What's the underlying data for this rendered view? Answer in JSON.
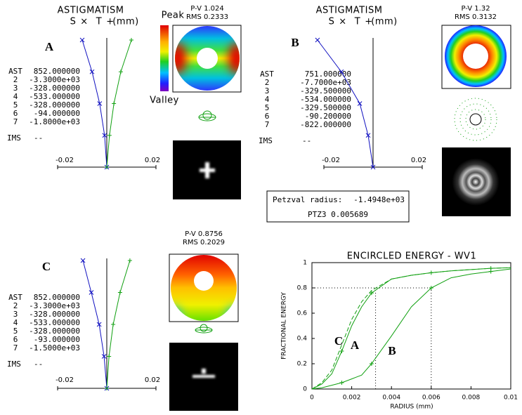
{
  "panels": [
    {
      "label": "A",
      "title": "ASTIGMATISM",
      "units": "(mm)",
      "rows": [
        [
          "AST",
          "852.000000"
        ],
        [
          "2",
          "-3.3000e+03"
        ],
        [
          "3",
          "-328.000000"
        ],
        [
          "4",
          "-533.000000"
        ],
        [
          "5",
          "-328.000000"
        ],
        [
          "6",
          "-94.000000"
        ],
        [
          "7",
          "-1.8000e+03"
        ]
      ],
      "ims": [
        "IMS",
        "--"
      ],
      "wavefront": {
        "pv": "P-V 1.024",
        "rms": "RMS 0.2333",
        "peak": "Peak",
        "valley": "Valley"
      },
      "plot": {
        "xlim": [
          -0.02,
          0.02
        ],
        "xticks": [
          -0.02,
          0.02
        ],
        "field": [
          1,
          0.75,
          0.5,
          0.25,
          0
        ],
        "series": [
          {
            "name": "S",
            "marker": "×",
            "color": "#1010c0",
            "values": [
              -0.01,
              -0.006,
              -0.0029,
              -0.0009,
              0
            ]
          },
          {
            "name": "T",
            "marker": "+",
            "color": "#10a010",
            "values": [
              0.01,
              0.0057,
              0.0029,
              0.0011,
              0
            ]
          }
        ]
      }
    },
    {
      "label": "B",
      "title": "ASTIGMATISM",
      "units": "(mm)",
      "rows": [
        [
          "AST",
          "751.000000"
        ],
        [
          "2",
          "-7.7000e+03"
        ],
        [
          "3",
          "-329.500000"
        ],
        [
          "4",
          "-534.000000"
        ],
        [
          "5",
          "-329.500000"
        ],
        [
          "6",
          "-90.200000"
        ],
        [
          "7",
          "-822.000000"
        ]
      ],
      "ims": [
        "IMS",
        "--"
      ],
      "wavefront": {
        "pv": "P-V 1.32",
        "rms": "RMS 0.3132"
      },
      "plot": {
        "xlim": [
          -0.02,
          0.02
        ],
        "xticks": [
          -0.02,
          0.02
        ],
        "field": [
          1,
          0.75,
          0.5,
          0.25,
          0
        ],
        "series": [
          {
            "name": "S",
            "marker": "×",
            "color": "#1010c0",
            "values": [
              -0.0226,
              -0.0129,
              -0.0054,
              -0.002,
              0
            ]
          },
          {
            "name": "T",
            "marker": "+",
            "color": "#10a010",
            "values": [
              null,
              null,
              null,
              null,
              null
            ]
          }
        ]
      }
    },
    {
      "label": "C",
      "rows": [
        [
          "AST",
          "852.000000"
        ],
        [
          "2",
          "-3.3000e+03"
        ],
        [
          "3",
          "-328.000000"
        ],
        [
          "4",
          "-533.000000"
        ],
        [
          "5",
          "-328.000000"
        ],
        [
          "6",
          "-93.000000"
        ],
        [
          "7",
          "-1.5000e+03"
        ]
      ],
      "ims": [
        "IMS",
        "--"
      ],
      "wavefront": {
        "pv": "P-V 0.8756",
        "rms": "RMS 0.2029"
      },
      "plot": {
        "xlim": [
          -0.02,
          0.02
        ],
        "xticks": [
          -0.02,
          0.02
        ],
        "field": [
          1,
          0.75,
          0.5,
          0.25,
          0
        ],
        "series": [
          {
            "name": "S",
            "marker": "×",
            "color": "#1010c0",
            "values": [
              -0.0097,
              -0.0063,
              -0.0031,
              -0.0011,
              0
            ]
          },
          {
            "name": "T",
            "marker": "+",
            "color": "#10a010",
            "values": [
              0.0094,
              0.0054,
              0.0026,
              0.0009,
              0
            ]
          }
        ]
      }
    }
  ],
  "petzval": {
    "label": "Petzval radius:",
    "value": "-1.4948e+03",
    "ptz3": "PTZ3 0.005689"
  },
  "chart_data": {
    "type": "line",
    "title": "ENCIRCLED ENERGY - WV1",
    "x_label": "RADIUS (mm)",
    "y_label": "FRACTIONAL ENERGY",
    "x": [
      0,
      0.0005,
      0.001,
      0.0015,
      0.002,
      0.0025,
      0.003,
      0.004,
      0.005,
      0.006,
      0.007,
      0.008,
      0.009,
      0.01
    ],
    "series": [
      {
        "name": "A",
        "color": "#10a010",
        "dash": false,
        "values": [
          0,
          0.04,
          0.12,
          0.3,
          0.5,
          0.65,
          0.76,
          0.87,
          0.9,
          0.92,
          0.935,
          0.945,
          0.955,
          0.96
        ]
      },
      {
        "name": "C",
        "color": "#10a010",
        "dash": true,
        "values": [
          0,
          0.05,
          0.15,
          0.35,
          0.55,
          0.69,
          0.78,
          0.87,
          0.9,
          0.92,
          0.935,
          0.945,
          0.955,
          0.96
        ]
      },
      {
        "name": "B",
        "color": "#10a010",
        "dash": false,
        "values": [
          0,
          0.01,
          0.03,
          0.05,
          0.08,
          0.11,
          0.2,
          0.42,
          0.65,
          0.8,
          0.88,
          0.91,
          0.93,
          0.95
        ]
      }
    ],
    "xlim": [
      0,
      0.01
    ],
    "xticks": [
      0,
      0.002,
      0.004,
      0.006,
      0.008,
      0.01
    ],
    "ylim": [
      0,
      1
    ],
    "yticks": [
      0,
      0.2,
      0.4,
      0.6,
      0.8,
      1
    ],
    "reference_lines": {
      "x": [
        0.0032,
        0.006
      ],
      "y": 0.8
    }
  }
}
